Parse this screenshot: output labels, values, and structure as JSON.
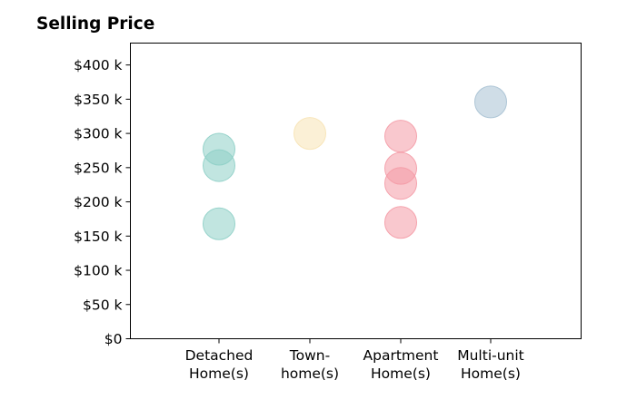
{
  "chart_data": {
    "type": "scatter",
    "title": "Selling Price",
    "xlabel": "",
    "ylabel": "",
    "categories": [
      [
        "Detached",
        "Home(s)"
      ],
      [
        "Town-",
        "home(s)"
      ],
      [
        "Apartment",
        "Home(s)"
      ],
      [
        "Multi-unit",
        "Home(s)"
      ]
    ],
    "ylim": [
      0,
      432000
    ],
    "y_ticks": [
      {
        "value": 0,
        "label": "$0"
      },
      {
        "value": 50000,
        "label": "$50 k"
      },
      {
        "value": 100000,
        "label": "$100 k"
      },
      {
        "value": 150000,
        "label": "$150 k"
      },
      {
        "value": 200000,
        "label": "$200 k"
      },
      {
        "value": 250000,
        "label": "$250 k"
      },
      {
        "value": 300000,
        "label": "$300 k"
      },
      {
        "value": 350000,
        "label": "$350 k"
      },
      {
        "value": 400000,
        "label": "$400 k"
      }
    ],
    "grid": false,
    "series": [
      {
        "category": 0,
        "color": "#8ecfc6",
        "values": [
          277000,
          253000,
          168000
        ]
      },
      {
        "category": 1,
        "color": "#f7e3b5",
        "values": [
          300000
        ]
      },
      {
        "category": 2,
        "color": "#f49ba6",
        "values": [
          296000,
          249000,
          227000,
          170000
        ]
      },
      {
        "category": 3,
        "color": "#a7c1d3",
        "values": [
          346000
        ]
      }
    ]
  }
}
